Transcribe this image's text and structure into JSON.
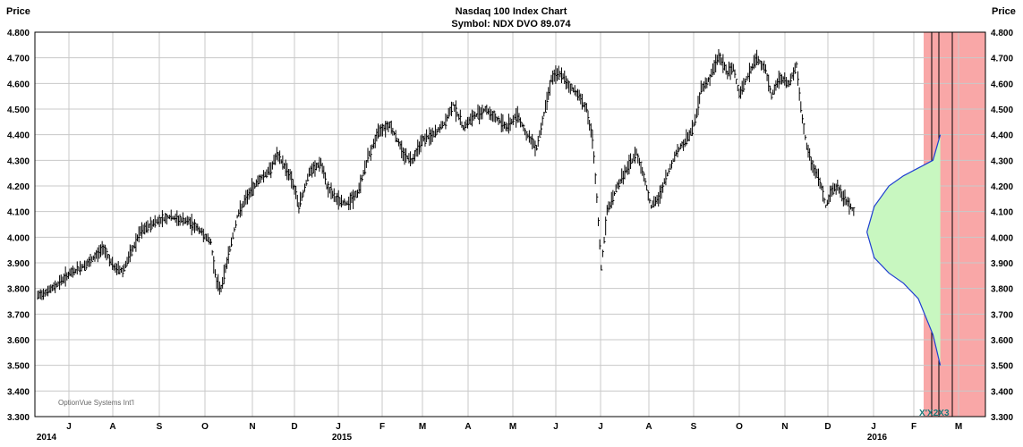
{
  "chart_data": {
    "type": "bar",
    "subtype": "ohlc-price-chart",
    "title": "Nasdaq 100 Index Chart",
    "subtitle": "Symbol: NDX  DVO 89.074",
    "ylabel_left": "Price",
    "ylabel_right": "Price",
    "ylim": [
      3.3,
      4.8
    ],
    "y_ticks": [
      "3.300",
      "3.400",
      "3.500",
      "3.600",
      "3.700",
      "3.800",
      "3.900",
      "4.000",
      "4.100",
      "4.200",
      "4.300",
      "4.400",
      "4.500",
      "4.600",
      "4.700",
      "4.800"
    ],
    "x_months": [
      "J",
      "A",
      "S",
      "O",
      "N",
      "D",
      "J",
      "F",
      "M",
      "A",
      "M",
      "J",
      "J",
      "A",
      "S",
      "O",
      "N",
      "D",
      "J",
      "F",
      "M"
    ],
    "x_years": [
      "2014",
      "2015",
      "2016"
    ],
    "watermark": "OptionVue Systems Int'l",
    "price_path": [
      [
        0,
        3.77
      ],
      [
        10,
        3.8
      ],
      [
        20,
        3.85
      ],
      [
        35,
        3.9
      ],
      [
        45,
        3.96
      ],
      [
        52,
        3.88
      ],
      [
        58,
        3.87
      ],
      [
        63,
        3.93
      ],
      [
        70,
        4.02
      ],
      [
        80,
        4.06
      ],
      [
        90,
        4.08
      ],
      [
        95,
        4.07
      ],
      [
        103,
        4.06
      ],
      [
        110,
        4.03
      ],
      [
        118,
        3.98
      ],
      [
        122,
        3.82
      ],
      [
        125,
        3.8
      ],
      [
        130,
        3.93
      ],
      [
        136,
        4.08
      ],
      [
        142,
        4.15
      ],
      [
        150,
        4.22
      ],
      [
        158,
        4.26
      ],
      [
        163,
        4.32
      ],
      [
        168,
        4.28
      ],
      [
        173,
        4.23
      ],
      [
        178,
        4.12
      ],
      [
        185,
        4.25
      ],
      [
        193,
        4.29
      ],
      [
        197,
        4.2
      ],
      [
        203,
        4.15
      ],
      [
        210,
        4.13
      ],
      [
        218,
        4.17
      ],
      [
        225,
        4.31
      ],
      [
        233,
        4.42
      ],
      [
        240,
        4.44
      ],
      [
        245,
        4.38
      ],
      [
        250,
        4.32
      ],
      [
        255,
        4.3
      ],
      [
        262,
        4.38
      ],
      [
        270,
        4.4
      ],
      [
        278,
        4.45
      ],
      [
        283,
        4.52
      ],
      [
        290,
        4.43
      ],
      [
        297,
        4.47
      ],
      [
        305,
        4.5
      ],
      [
        313,
        4.46
      ],
      [
        320,
        4.43
      ],
      [
        327,
        4.48
      ],
      [
        333,
        4.4
      ],
      [
        340,
        4.35
      ],
      [
        345,
        4.48
      ],
      [
        350,
        4.62
      ],
      [
        356,
        4.64
      ],
      [
        362,
        4.59
      ],
      [
        368,
        4.56
      ],
      [
        374,
        4.5
      ],
      [
        378,
        4.38
      ],
      [
        381,
        4.15
      ],
      [
        384,
        3.88
      ],
      [
        388,
        4.1
      ],
      [
        395,
        4.2
      ],
      [
        402,
        4.27
      ],
      [
        408,
        4.33
      ],
      [
        413,
        4.24
      ],
      [
        418,
        4.12
      ],
      [
        423,
        4.15
      ],
      [
        428,
        4.23
      ],
      [
        435,
        4.33
      ],
      [
        442,
        4.38
      ],
      [
        446,
        4.42
      ],
      [
        449,
        4.48
      ],
      [
        452,
        4.58
      ],
      [
        458,
        4.62
      ],
      [
        464,
        4.71
      ],
      [
        470,
        4.64
      ],
      [
        474,
        4.66
      ],
      [
        478,
        4.56
      ],
      [
        484,
        4.63
      ],
      [
        490,
        4.7
      ],
      [
        496,
        4.65
      ],
      [
        500,
        4.55
      ],
      [
        505,
        4.62
      ],
      [
        512,
        4.6
      ],
      [
        517,
        4.67
      ],
      [
        520,
        4.5
      ],
      [
        524,
        4.35
      ],
      [
        528,
        4.28
      ],
      [
        533,
        4.22
      ],
      [
        537,
        4.12
      ],
      [
        541,
        4.18
      ],
      [
        545,
        4.2
      ],
      [
        549,
        4.15
      ],
      [
        553,
        4.13
      ],
      [
        556,
        4.1
      ]
    ],
    "projection_upper": [
      [
        565,
        4.02
      ],
      [
        570,
        4.12
      ],
      [
        580,
        4.2
      ],
      [
        590,
        4.24
      ],
      [
        600,
        4.27
      ],
      [
        610,
        4.3
      ],
      [
        615,
        4.4
      ]
    ],
    "projection_lower": [
      [
        565,
        4.02
      ],
      [
        570,
        3.92
      ],
      [
        580,
        3.86
      ],
      [
        590,
        3.82
      ],
      [
        600,
        3.76
      ],
      [
        610,
        3.62
      ],
      [
        615,
        3.5
      ]
    ],
    "event_markers": [
      "X1",
      "X2",
      "X3"
    ],
    "colors": {
      "background": "#ffffff",
      "plot_border": "#000000",
      "grid": "#c8c8c8",
      "bars": "#000000",
      "projection_zone": "#f9a7a7",
      "confidence_fill": "#c8f7c0",
      "projection_curve": "#1f3fd1",
      "event_lines": "#000000",
      "marker_text": "#1a7a7a"
    }
  }
}
